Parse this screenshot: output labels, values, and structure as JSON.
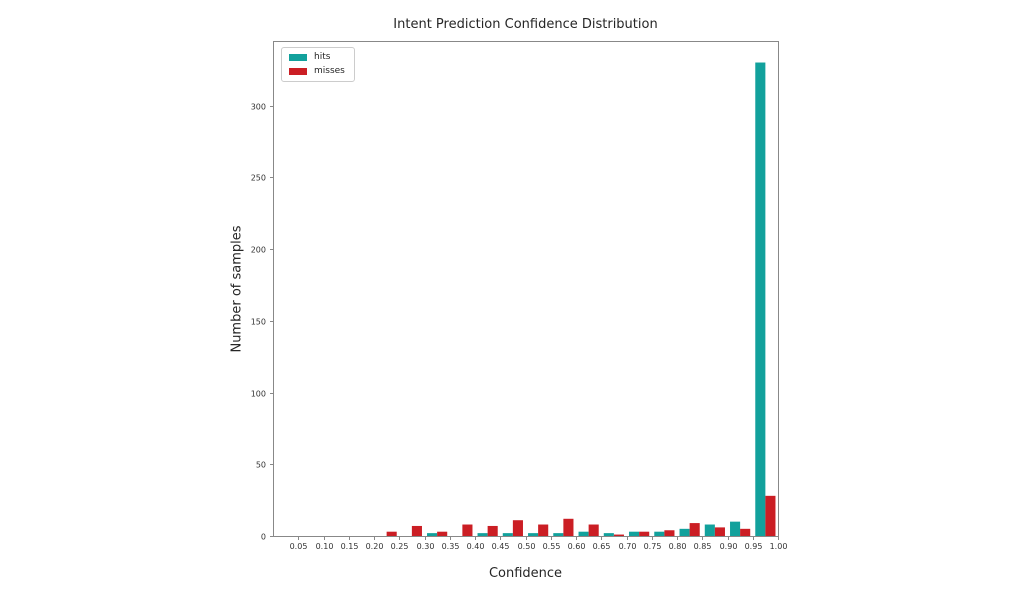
{
  "chart_data": {
    "type": "bar",
    "subtype": "grouped-histogram",
    "title": "Intent Prediction Confidence Distribution",
    "xlabel": "Confidence",
    "ylabel": "Number of samples",
    "bin_width": 0.05,
    "bin_starts": [
      0.0,
      0.05,
      0.1,
      0.15,
      0.2,
      0.25,
      0.3,
      0.35,
      0.4,
      0.45,
      0.5,
      0.55,
      0.6,
      0.65,
      0.7,
      0.75,
      0.8,
      0.85,
      0.9,
      0.95
    ],
    "series": [
      {
        "name": "hits",
        "color": "#12a19c",
        "values": [
          0,
          0,
          0,
          0,
          0,
          0,
          2,
          0,
          2,
          2,
          2,
          2,
          3,
          2,
          3,
          3,
          5,
          8,
          10,
          330
        ]
      },
      {
        "name": "misses",
        "color": "#cb1e24",
        "values": [
          0,
          0,
          0,
          0,
          3,
          7,
          3,
          8,
          7,
          11,
          8,
          12,
          8,
          1,
          3,
          4,
          9,
          6,
          5,
          28
        ]
      }
    ],
    "xticks": [
      0.05,
      0.1,
      0.15,
      0.2,
      0.25,
      0.3,
      0.35,
      0.4,
      0.45,
      0.5,
      0.55,
      0.6,
      0.65,
      0.7,
      0.75,
      0.8,
      0.85,
      0.9,
      0.95,
      1.0
    ],
    "yticks": [
      0,
      50,
      100,
      150,
      200,
      250,
      300
    ],
    "xlim": [
      0,
      1
    ],
    "ylim": [
      0,
      345
    ],
    "grid": false,
    "legend_position": "upper-left",
    "spine_color": "#888888",
    "tick_label_color": "#333333"
  }
}
